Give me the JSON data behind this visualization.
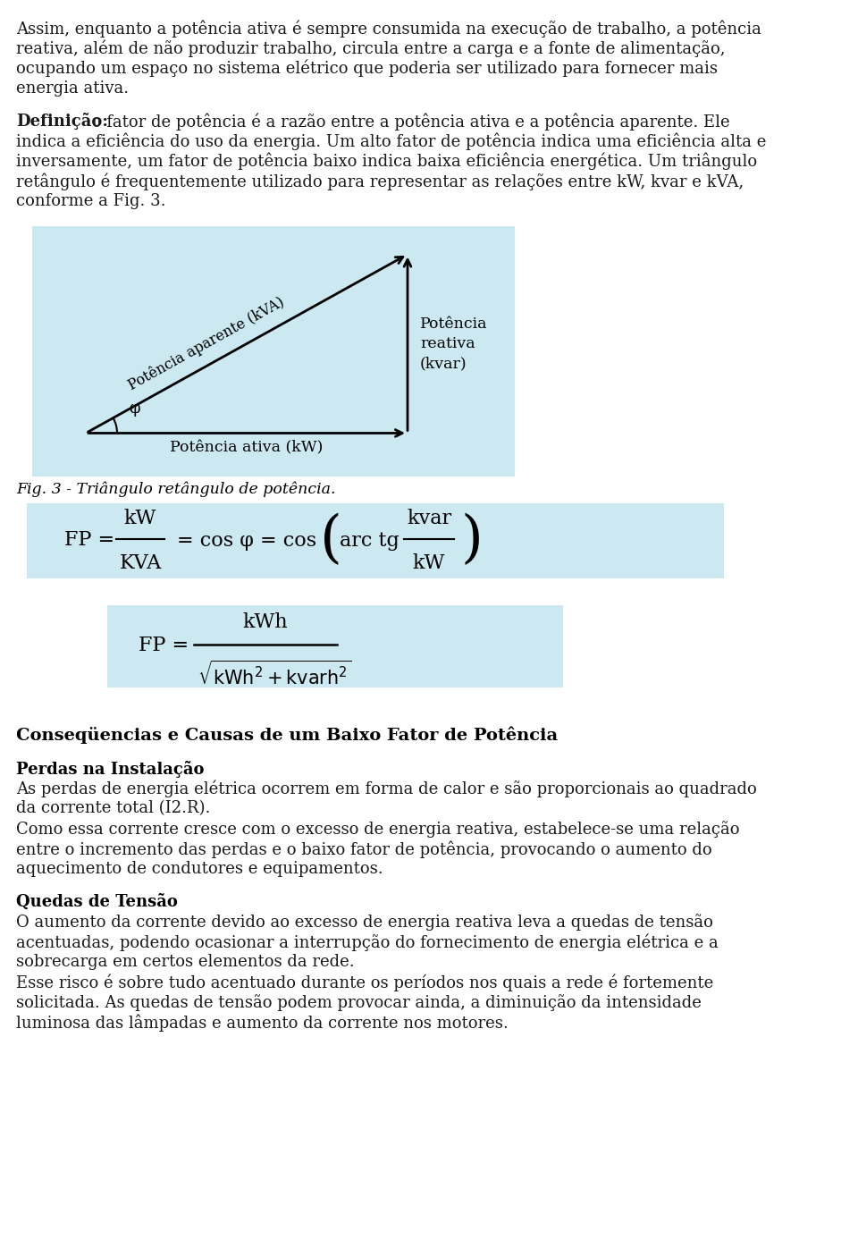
{
  "bg_color": "#ffffff",
  "text_color": "#1a1a1a",
  "light_blue": "#cce8f0",
  "paragraph1_lines": [
    "Assim, enquanto a potência ativa é sempre consumida na execução de trabalho, a potência",
    "reativa, além de não produzir trabalho, circula entre a carga e a fonte de alimentação,",
    "ocupando um espaço no sistema elétrico que poderia ser utilizado para fornecer mais",
    "energia ativa."
  ],
  "bold_def": "Definição:",
  "paragraph2_lines": [
    " o fator de potência é a razão entre a potência ativa e a potência aparente. Ele",
    "indica a eficiência do uso da energia. Um alto fator de potência indica uma eficiência alta e",
    "inversamente, um fator de potência baixo indica baixa eficiência energética. Um triângulo",
    "retângulo é frequentemente utilizado para representar as relações entre kW, kvar e kVA,",
    "conforme a Fig. 3."
  ],
  "fig_caption": "Fig. 3 - Triângulo retângulo de potência.",
  "label_hyp": "Potência aparente (kVA)",
  "label_vert": "Potência\nreativa\n(kvar)",
  "label_horiz": "Potência ativa (kW)",
  "section_title": "Conseqüencias e Causas de um Baixo Fator de Potência",
  "subsec1_title": "Perdas na Instalação",
  "subsec1_lines": [
    "As perdas de energia elétrica ocorrem em forma de calor e são proporcionais ao quadrado",
    "da corrente total (I2.R).",
    "Como essa corrente cresce com o excesso de energia reativa, estabelece-se uma relação",
    "entre o incremento das perdas e o baixo fator de potência, provocando o aumento do",
    "aquecimento de condutores e equipamentos."
  ],
  "subsec2_title": "Quedas de Tensão",
  "subsec2_lines": [
    "O aumento da corrente devido ao excesso de energia reativa leva a quedas de tensão",
    "acentuadas, podendo ocasionar a interrupção do fornecimento de energia elétrica e a",
    "sobrecarga em certos elementos da rede.",
    "Esse risco é sobre tudo acentuado durante os períodos nos quais a rede é fortemente",
    "solicitada. As quedas de tensão podem provocar ainda, a diminuição da intensidade",
    "luminosa das lâmpadas e aumento da corrente nos motores."
  ]
}
